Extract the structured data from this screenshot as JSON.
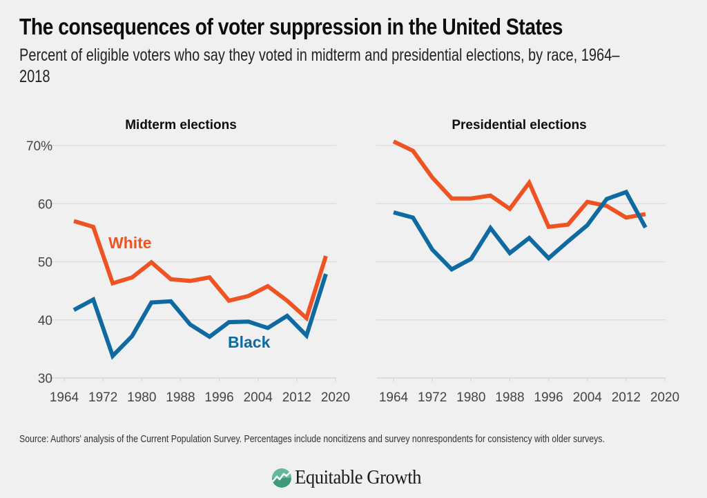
{
  "title": "The consequences of voter suppression in the United States",
  "subtitle": "Percent of eligible voters who say they voted in midterm and presidential elections, by race, 1964–2018",
  "source": "Source: Authors' analysis of the Current Population Survey. Percentages include noncitizens and survey nonrespondents for consistency with older surveys.",
  "logo": {
    "icon": "growth-chart-icon",
    "text": "Equitable Growth"
  },
  "colors": {
    "white": "#f05323",
    "black": "#0e6aa0",
    "background": "#f0f0f0"
  },
  "chart_data": [
    {
      "type": "line",
      "title": "Midterm elections",
      "xlabel": "",
      "ylabel": "",
      "xlim": [
        1964,
        2020
      ],
      "ylim": [
        30,
        70
      ],
      "x_ticks": [
        "1964",
        "1972",
        "1980",
        "1988",
        "1996",
        "2004",
        "2012",
        "2020"
      ],
      "y_ticks": [
        "30",
        "40",
        "50",
        "60",
        "70%"
      ],
      "grid": true,
      "x": [
        1966,
        1970,
        1974,
        1978,
        1982,
        1986,
        1990,
        1994,
        1998,
        2002,
        2006,
        2010,
        2014,
        2018
      ],
      "series": [
        {
          "name": "White",
          "label": "White",
          "color": "#f05323",
          "values": [
            57.0,
            56.0,
            46.3,
            47.3,
            49.9,
            47.0,
            46.7,
            47.3,
            43.3,
            44.1,
            45.8,
            43.3,
            40.3,
            51.0
          ]
        },
        {
          "name": "Black",
          "label": "Black",
          "color": "#0e6aa0",
          "values": [
            41.7,
            43.5,
            33.8,
            37.2,
            43.0,
            43.2,
            39.2,
            37.1,
            39.6,
            39.7,
            38.6,
            40.7,
            37.3,
            47.9
          ]
        }
      ]
    },
    {
      "type": "line",
      "title": "Presidential elections",
      "xlabel": "",
      "ylabel": "",
      "xlim": [
        1964,
        2020
      ],
      "ylim": [
        30,
        70
      ],
      "x_ticks": [
        "1964",
        "1972",
        "1980",
        "1988",
        "1996",
        "2004",
        "2012",
        "2020"
      ],
      "y_ticks": [],
      "grid": true,
      "x": [
        1964,
        1968,
        1972,
        1976,
        1980,
        1984,
        1988,
        1992,
        1996,
        2000,
        2004,
        2008,
        2012,
        2016
      ],
      "series": [
        {
          "name": "White",
          "color": "#f05323",
          "values": [
            70.7,
            69.1,
            64.5,
            60.9,
            60.9,
            61.4,
            59.1,
            63.6,
            56.0,
            56.4,
            60.3,
            59.6,
            57.6,
            58.2
          ]
        },
        {
          "name": "Black",
          "color": "#0e6aa0",
          "values": [
            58.5,
            57.6,
            52.1,
            48.7,
            50.5,
            55.8,
            51.5,
            54.1,
            50.6,
            53.5,
            56.3,
            60.8,
            62.0,
            55.9
          ]
        }
      ]
    }
  ]
}
